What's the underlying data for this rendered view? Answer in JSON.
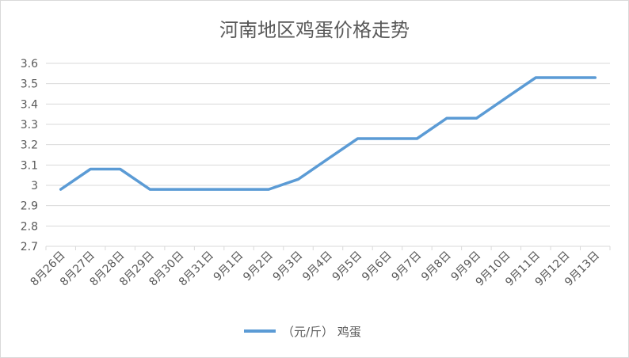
{
  "chart_data": {
    "type": "line",
    "title": "河南地区鸡蛋价格走势",
    "xlabel": "",
    "ylabel": "",
    "ylim": [
      2.7,
      3.6
    ],
    "ytick_step": 0.1,
    "yticks": [
      "2.7",
      "2.8",
      "2.9",
      "3",
      "3.1",
      "3.2",
      "3.3",
      "3.4",
      "3.5",
      "3.6"
    ],
    "grid": true,
    "legend_position": "bottom",
    "categories": [
      "8月26日",
      "8月27日",
      "8月28日",
      "8月29日",
      "8月30日",
      "8月31日",
      "9月1日",
      "9月2日",
      "9月3日",
      "9月4日",
      "9月5日",
      "9月6日",
      "9月7日",
      "9月8日",
      "9月9日",
      "9月10日",
      "9月11日",
      "9月12日",
      "9月13日"
    ],
    "series": [
      {
        "name": "（元/斤） 鸡蛋",
        "color": "#5b9bd5",
        "values": [
          2.98,
          3.08,
          3.08,
          2.98,
          2.98,
          2.98,
          2.98,
          2.98,
          3.03,
          3.13,
          3.23,
          3.23,
          3.23,
          3.33,
          3.33,
          3.43,
          3.53,
          3.53,
          3.53
        ]
      }
    ]
  }
}
